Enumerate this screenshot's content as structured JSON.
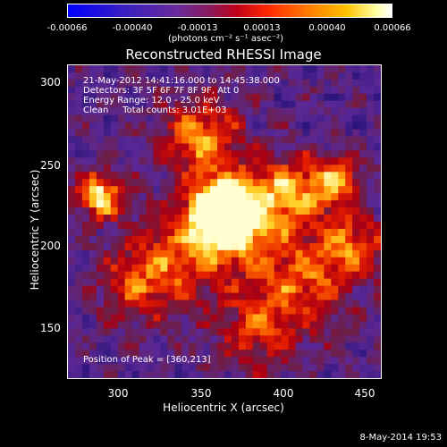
{
  "colorbar": {
    "tick_labels": [
      "-0.00066",
      "-0.00040",
      "-0.00013",
      "0.00013",
      "0.00040",
      "0.00066"
    ],
    "unit_label": "(photons cm⁻² s⁻¹ asec⁻²)"
  },
  "title": "Reconstructed RHESSI Image",
  "info_lines": [
    "21-May-2012 14:41:16.000 to 14:45:38.000",
    "Detectors: 3F 5F 6F 7F 8F 9F, Att 0",
    "Energy Range: 12.0 - 25.0 keV",
    "Clean     Total counts: 3.01E+03"
  ],
  "peak_label": "Position of Peak = [360,213]",
  "axes": {
    "x_label": "Heliocentric X (arcsec)",
    "y_label": "Heliocentric Y (arcsec)",
    "x_ticks": [
      "300",
      "350",
      "400",
      "450"
    ],
    "y_ticks": [
      "300",
      "250",
      "200",
      "150"
    ]
  },
  "footer_date": "8-May-2014 19:53",
  "chart_data": {
    "type": "heatmap",
    "title": "Reconstructed RHESSI Image",
    "xlabel": "Heliocentric X (arcsec)",
    "ylabel": "Heliocentric Y (arcsec)",
    "xlim": [
      265,
      460
    ],
    "ylim": [
      110,
      305
    ],
    "colorbar_range": [
      -0.00066,
      0.00066
    ],
    "peak": [
      360,
      213
    ]
  }
}
